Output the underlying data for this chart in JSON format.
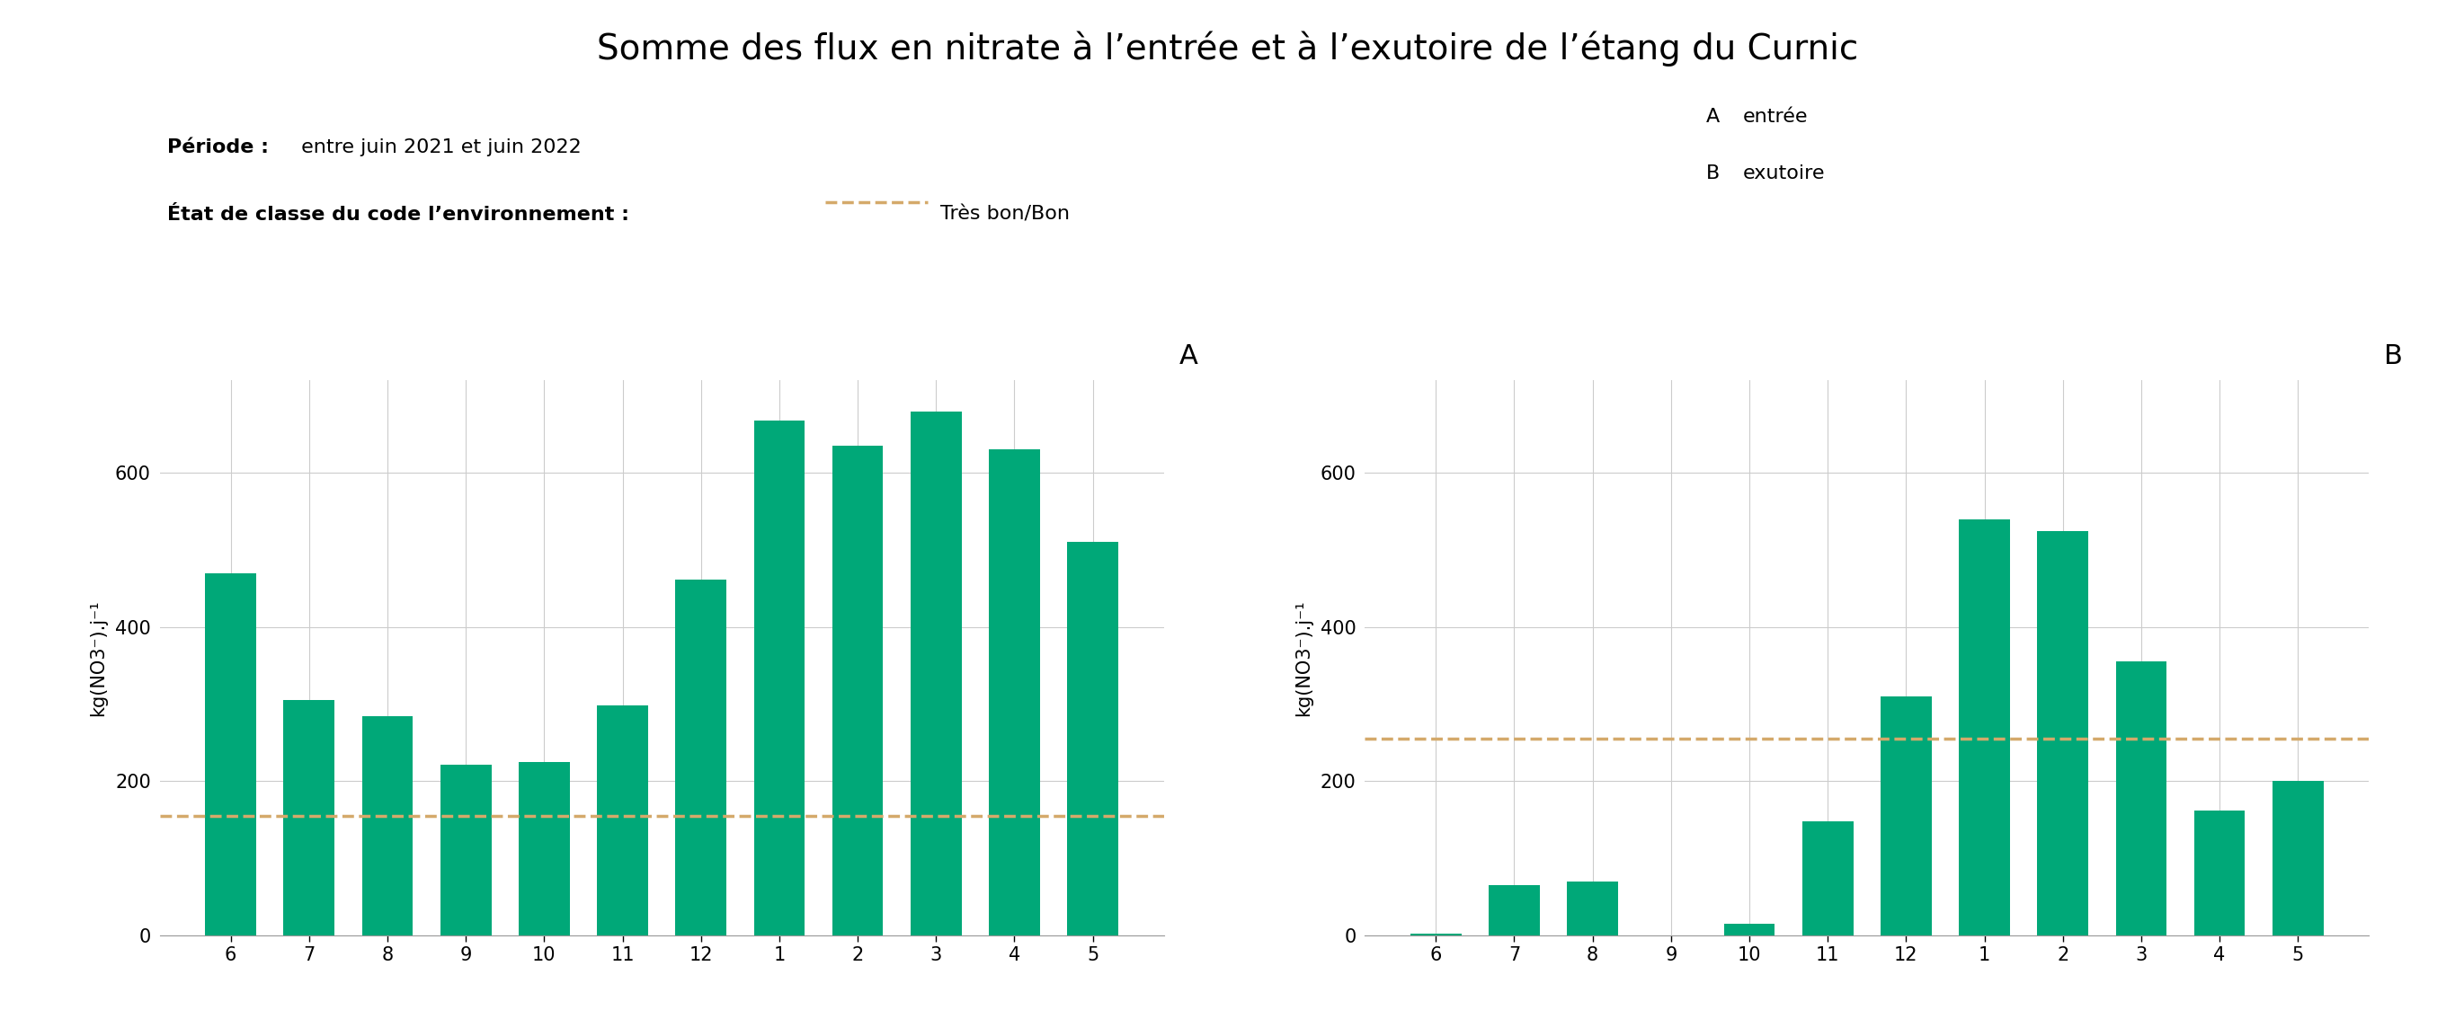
{
  "title": "Somme des flux en nitrate à l’entrée et à l’exutoire de l’étang du Curnic",
  "periode_label_bold": "Période :",
  "periode_label_normal": " entre juin 2021 et juin 2022",
  "etat_label_bold": "État de classe du code l’environnement :",
  "etat_label_text": "Très bon/Bon",
  "categories": [
    6,
    7,
    8,
    9,
    10,
    11,
    12,
    1,
    2,
    3,
    4,
    5
  ],
  "values_A": [
    470,
    305,
    285,
    222,
    225,
    298,
    462,
    668,
    635,
    680,
    630,
    510
  ],
  "values_B": [
    2,
    65,
    70,
    0,
    15,
    148,
    310,
    540,
    525,
    355,
    162,
    200
  ],
  "hline_A": 155,
  "hline_B": 255,
  "bar_color": "#00a878",
  "hline_color": "#d4a96a",
  "ylabel": "kg(NO3⁻).j⁻¹",
  "ylim_A": [
    0,
    720
  ],
  "ylim_B": [
    0,
    720
  ],
  "yticks_A": [
    0,
    200,
    400,
    600
  ],
  "yticks_B": [
    0,
    200,
    400,
    600
  ],
  "background_color": "#ffffff",
  "grid_color": "#cccccc",
  "title_fontsize": 28,
  "annot_fontsize": 16,
  "tick_fontsize": 15,
  "label_marker_fontsize": 22
}
